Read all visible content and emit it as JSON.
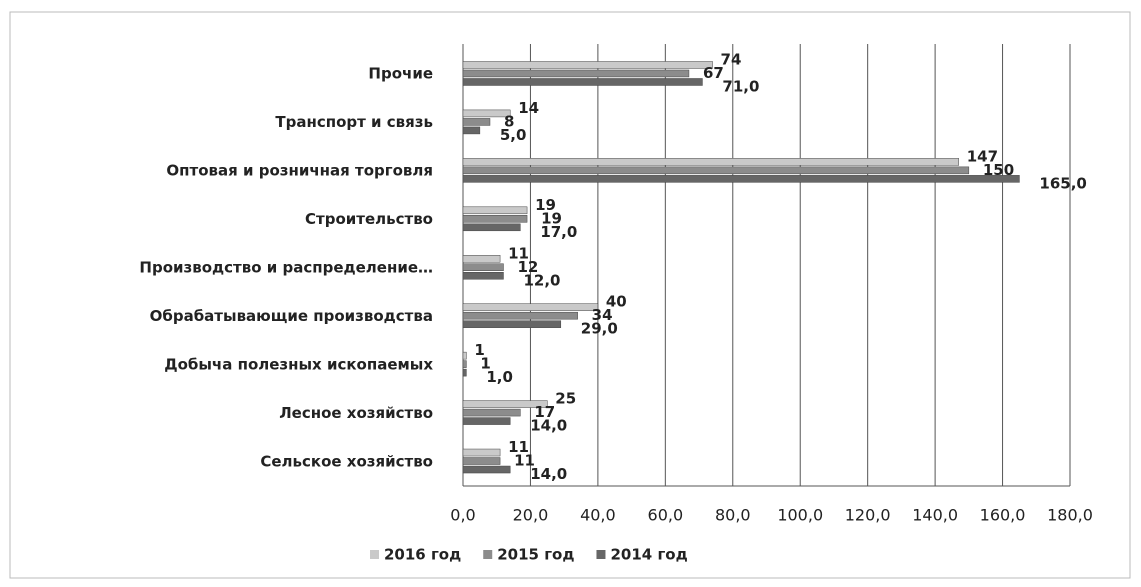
{
  "chart_data": {
    "type": "barh",
    "categories": [
      "Прочие",
      "Транспорт и связь",
      "Оптовая и розничная торговля",
      "Строительство",
      "Производство и распределение…",
      "Обрабатывающие производства",
      "Добыча полезных ископаемых",
      "Лесное хозяйство",
      "Сельское хозяйство"
    ],
    "series": [
      {
        "name": "2016 год",
        "color": "#c9c9c9",
        "values": [
          74,
          14,
          147,
          19,
          11,
          40,
          1,
          25,
          11
        ]
      },
      {
        "name": "2015 год",
        "color": "#8c8c8c",
        "values": [
          67,
          8,
          150,
          19,
          12,
          34,
          1,
          17,
          11
        ]
      },
      {
        "name": "2014 год",
        "color": "#666666",
        "values": [
          71,
          5,
          165,
          17,
          12,
          29,
          1,
          14,
          14
        ],
        "value_labels": [
          "71,0",
          "5,0",
          "165,0",
          "17,0",
          "12,0",
          "29,0",
          "1,0",
          "14,0",
          "14,0"
        ]
      }
    ],
    "xlim": [
      0,
      180
    ],
    "xticks": [
      {
        "value": 0,
        "label": "0,0"
      },
      {
        "value": 20,
        "label": "20,0"
      },
      {
        "value": 40,
        "label": "40,0"
      },
      {
        "value": 60,
        "label": "60,0"
      },
      {
        "value": 80,
        "label": "80,0"
      },
      {
        "value": 100,
        "label": "100,0"
      },
      {
        "value": 120,
        "label": "120,0"
      },
      {
        "value": 140,
        "label": "140,0"
      },
      {
        "value": 160,
        "label": "160,0"
      },
      {
        "value": 180,
        "label": "180,0"
      }
    ],
    "grid": true,
    "legend": "bottom"
  }
}
